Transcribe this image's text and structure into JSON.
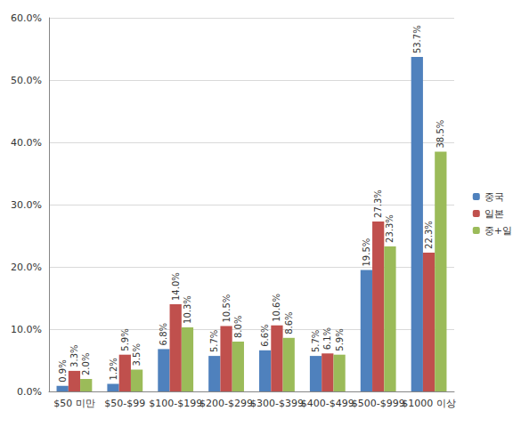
{
  "chart_data": {
    "type": "bar",
    "categories": [
      "$50 미만",
      "$50-$99",
      "$100-$199",
      "$200-$299",
      "$300-$399",
      "$400-$499",
      "$500-$999",
      "$1000 이상"
    ],
    "series": [
      {
        "name": "중국",
        "color": "#4F81BD",
        "values": [
          0.9,
          1.2,
          6.8,
          5.7,
          6.6,
          5.7,
          19.5,
          53.7
        ],
        "value_labels": [
          "0.9%",
          "1.2%",
          "6.8%",
          "5.7%",
          "6.6%",
          "5.7%",
          "19.5%",
          "53.7%"
        ]
      },
      {
        "name": "일본",
        "color": "#C0504D",
        "values": [
          3.3,
          5.9,
          14.0,
          10.5,
          10.6,
          6.1,
          27.3,
          22.3
        ],
        "value_labels": [
          "3.3%",
          "5.9%",
          "14.0%",
          "10.5%",
          "10.6%",
          "6.1%",
          "27.3%",
          "22.3%"
        ]
      },
      {
        "name": "중+일",
        "color": "#9BBB59",
        "values": [
          2.0,
          3.5,
          10.3,
          8.0,
          8.6,
          5.9,
          23.3,
          38.5
        ],
        "value_labels": [
          "2.0%",
          "3.5%",
          "10.3%",
          "8.0%",
          "8.6%",
          "5.9%",
          "23.3%",
          "38.5%"
        ]
      }
    ],
    "ylim": [
      0,
      60
    ],
    "yticks": [
      {
        "value": 0,
        "label": "0.0%"
      },
      {
        "value": 10,
        "label": "10.0%"
      },
      {
        "value": 20,
        "label": "20.0%"
      },
      {
        "value": 30,
        "label": "30.0%"
      },
      {
        "value": 40,
        "label": "40.0%"
      },
      {
        "value": 50,
        "label": "50.0%"
      },
      {
        "value": 60,
        "label": "60.0%"
      }
    ],
    "grid": true,
    "legend": "right",
    "data_labels": true
  }
}
